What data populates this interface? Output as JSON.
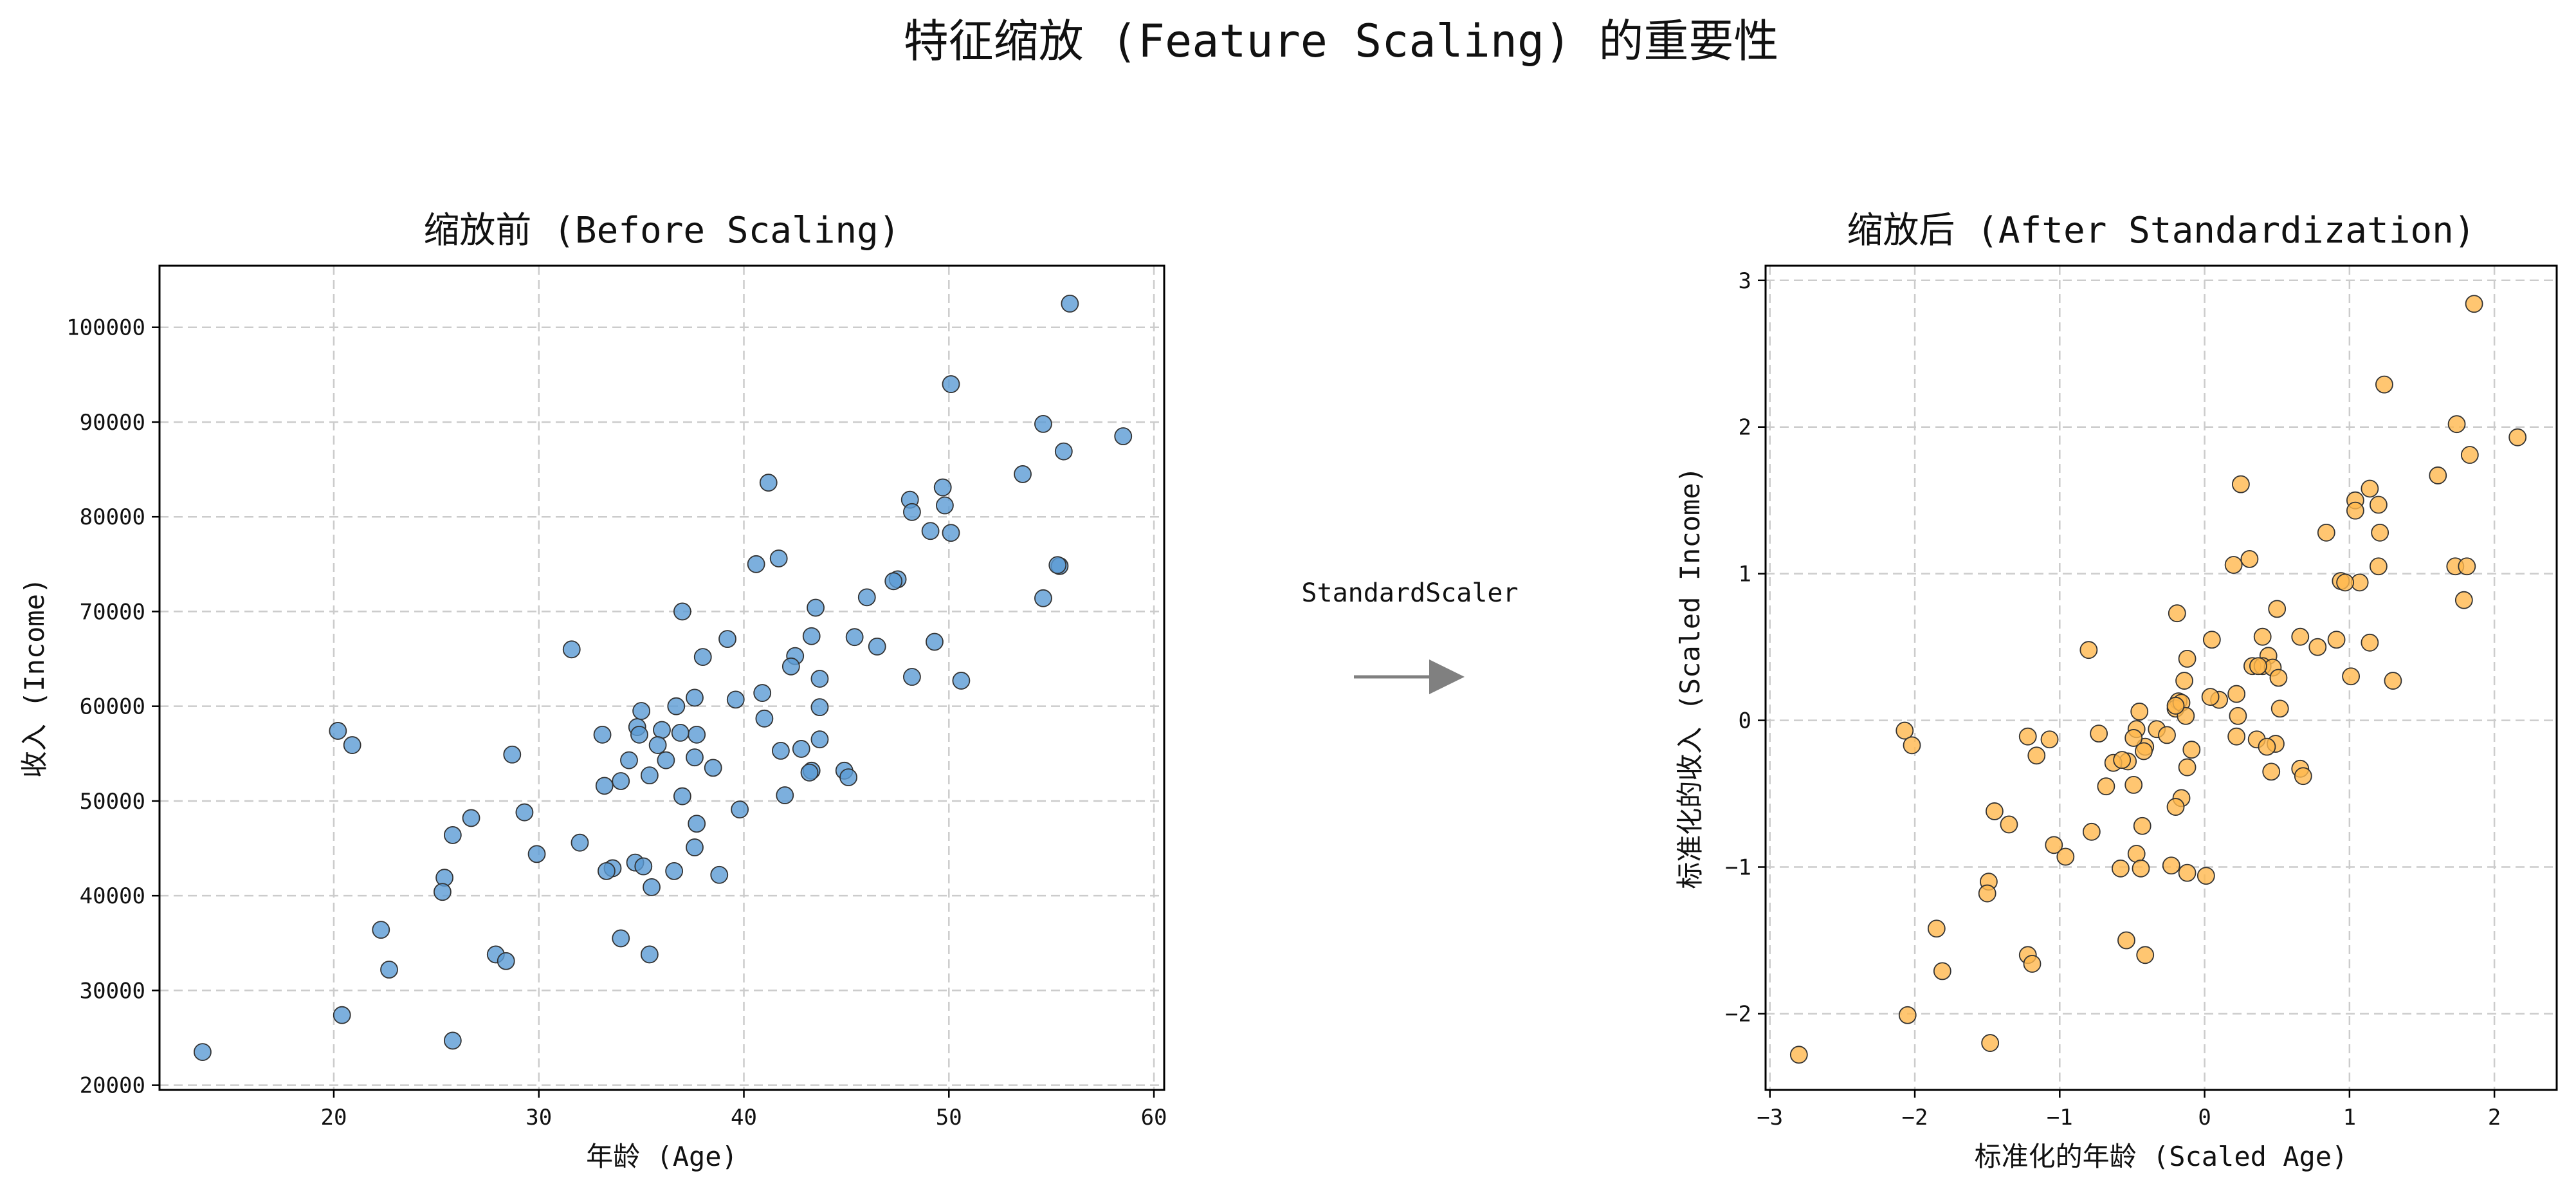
{
  "figure_title": "特征缩放 (Feature Scaling) 的重要性",
  "arrow_label": "StandardScaler",
  "colors": {
    "left_points": "#5b9bd5",
    "right_points": "#ffb84d",
    "edge": "#333333"
  },
  "chart_data": [
    {
      "type": "scatter",
      "title": "缩放前 (Before Scaling)",
      "xlabel": "年龄 (Age)",
      "ylabel": "收入 (Income)",
      "xlim": [
        11.5,
        60.5
      ],
      "ylim": [
        19500,
        106500
      ],
      "xticks": [
        20,
        30,
        40,
        50,
        60
      ],
      "yticks": [
        20000,
        30000,
        40000,
        50000,
        60000,
        70000,
        80000,
        90000,
        100000
      ],
      "grid": true,
      "x": [
        55.9,
        50.1,
        58.5,
        54.6,
        55.6,
        49.7,
        53.6,
        41.2,
        48.1,
        49.8,
        48.2,
        49.1,
        50.1,
        41.7,
        40.6,
        47.5,
        47.3,
        46.0,
        55.4,
        55.3,
        54.6,
        43.5,
        37.0,
        42.5,
        31.6,
        38.0,
        39.2,
        43.3,
        45.4,
        46.5,
        49.3,
        48.2,
        50.6,
        43.7,
        40.9,
        42.3,
        37.6,
        39.6,
        36.7,
        41.0,
        43.7,
        20.2,
        33.1,
        34.8,
        37.7,
        35.0,
        36.9,
        36.0,
        35.8,
        34.9,
        20.9,
        28.7,
        42.8,
        43.7,
        41.8,
        37.6,
        34.4,
        36.2,
        44.9,
        45.1,
        35.4,
        43.3,
        43.2,
        38.5,
        34.0,
        33.2,
        42.0,
        37.0,
        29.3,
        26.7,
        37.7,
        39.8,
        25.8,
        29.9,
        32.0,
        25.4,
        37.6,
        34.7,
        36.6,
        35.1,
        33.6,
        33.3,
        25.3,
        35.5,
        38.8,
        22.3,
        34.0,
        27.9,
        28.4,
        35.4,
        22.7,
        20.4,
        25.8,
        13.6
      ],
      "y": [
        102500,
        94000,
        88500,
        89800,
        86900,
        83100,
        84500,
        83600,
        81800,
        81200,
        80500,
        78500,
        78300,
        75600,
        75000,
        73400,
        73200,
        71500,
        74800,
        74900,
        71400,
        70400,
        70000,
        65300,
        66000,
        65200,
        67100,
        67400,
        67300,
        66300,
        66800,
        63100,
        62700,
        62900,
        61400,
        64200,
        60900,
        60700,
        60000,
        58700,
        59900,
        57400,
        57000,
        57800,
        57000,
        59500,
        57200,
        57500,
        55900,
        57000,
        55900,
        54900,
        55500,
        56500,
        55300,
        54600,
        54300,
        54300,
        53200,
        52500,
        52700,
        53200,
        53000,
        53500,
        52100,
        51600,
        50600,
        50500,
        48800,
        48200,
        47600,
        49100,
        46400,
        44400,
        45600,
        41900,
        45100,
        43500,
        42600,
        43100,
        42900,
        42600,
        40400,
        40900,
        42200,
        36400,
        35500,
        33800,
        33100,
        33800,
        32200,
        27400,
        24700,
        23500
      ]
    },
    {
      "type": "scatter",
      "title": "缩放后 (After Standardization)",
      "xlabel": "标准化的年龄 (Scaled Age)",
      "ylabel": "标准化的收入 (Scaled Income)",
      "xlim": [
        -3.03,
        2.43
      ],
      "ylim": [
        -2.52,
        3.1
      ],
      "xticks": [
        -3,
        -2,
        -1,
        0,
        1,
        2
      ],
      "yticks": [
        -2,
        -1,
        0,
        1,
        2,
        3
      ],
      "grid": true,
      "x": [
        1.86,
        1.24,
        2.16,
        1.74,
        1.83,
        1.14,
        1.61,
        1.2,
        0.25,
        1.04,
        1.04,
        0.2,
        0.84,
        -0.19,
        1.2,
        0.31,
        1.21,
        1.79,
        1.73,
        0.94,
        1.07,
        1.3,
        0.91,
        0.5,
        -0.18,
        0.4,
        0.44,
        1.81,
        0.66,
        0.97,
        0.78,
        1.14,
        0.33,
        1.01,
        0.4,
        -0.8,
        -0.12,
        0.05,
        0.22,
        -0.14,
        -0.2,
        0.47,
        0.1,
        0.23,
        0.51,
        0.37,
        0.04,
        -0.16,
        -0.13,
        0.22,
        -0.73,
        -0.2,
        -0.47,
        -0.33,
        -0.41,
        -0.45,
        -0.49,
        0.36,
        0.49,
        -0.26,
        -0.09,
        0.52,
        -0.53,
        -2.07,
        -2.02,
        -0.63,
        -1.22,
        -0.42,
        -0.49,
        -1.07,
        -0.68,
        0.43,
        0.46,
        0.66,
        0.68,
        -0.57,
        -0.12,
        -0.16,
        -0.2,
        -1.16,
        -1.35,
        -1.45,
        -0.78,
        -1.04,
        -0.58,
        -0.47,
        -0.43,
        -0.96,
        -0.23,
        -0.12,
        0.01,
        -0.44,
        -1.49,
        -1.5,
        -1.85,
        -1.81,
        -0.54,
        -1.22,
        -1.19,
        -2.05,
        -1.48,
        -0.41,
        -2.8
      ],
      "y": [
        2.84,
        2.29,
        1.93,
        2.02,
        1.81,
        1.58,
        1.67,
        1.47,
        1.61,
        1.5,
        1.43,
        1.06,
        1.28,
        0.73,
        1.05,
        1.1,
        1.28,
        0.82,
        1.05,
        0.95,
        0.94,
        0.27,
        0.55,
        0.76,
        0.13,
        0.57,
        0.44,
        1.05,
        0.57,
        0.94,
        0.5,
        0.53,
        0.37,
        0.3,
        0.37,
        0.48,
        0.42,
        0.55,
        0.18,
        0.27,
        0.08,
        0.36,
        0.14,
        0.03,
        0.29,
        0.37,
        0.16,
        0.12,
        0.03,
        -0.11,
        -0.09,
        0.1,
        -0.06,
        -0.06,
        -0.18,
        0.06,
        -0.12,
        -0.13,
        -0.16,
        -0.1,
        -0.2,
        0.08,
        -0.28,
        -0.07,
        -0.17,
        -0.29,
        -0.11,
        -0.21,
        -0.44,
        -0.13,
        -0.45,
        -0.18,
        -0.35,
        -0.33,
        -0.38,
        -0.27,
        -0.32,
        -0.53,
        -0.59,
        -0.24,
        -0.71,
        -0.62,
        -0.76,
        -0.85,
        -1.01,
        -0.91,
        -0.72,
        -0.93,
        -0.99,
        -1.04,
        -1.06,
        -1.01,
        -1.1,
        -1.18,
        -1.42,
        -1.71,
        -1.5,
        -1.6,
        -1.66,
        -2.01,
        -2.2,
        -1.6,
        -2.28
      ]
    }
  ]
}
